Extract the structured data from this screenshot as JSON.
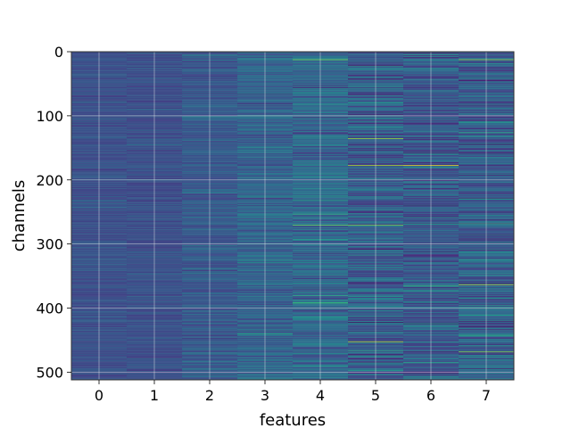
{
  "chart_data": {
    "type": "heatmap",
    "title": "",
    "xlabel": "features",
    "ylabel": "channels",
    "x_ticks": [
      "0",
      "1",
      "2",
      "3",
      "4",
      "5",
      "6",
      "7"
    ],
    "y_ticks": [
      "0",
      "100",
      "200",
      "300",
      "400",
      "500"
    ],
    "x_range": [
      -0.5,
      7.5
    ],
    "y_range": [
      512,
      0
    ],
    "rows": 512,
    "cols": 8,
    "colormap": "viridis",
    "grid": true,
    "value_range": [
      0,
      1
    ],
    "column_mean": [
      0.22,
      0.22,
      0.25,
      0.28,
      0.3,
      0.26,
      0.25,
      0.27
    ],
    "column_spread": [
      0.06,
      0.06,
      0.09,
      0.12,
      0.14,
      0.17,
      0.15,
      0.17
    ],
    "highlights": [
      {
        "col": 4,
        "row": 12,
        "value": 0.72
      },
      {
        "col": 7,
        "row": 12,
        "value": 0.75
      },
      {
        "col": 5,
        "row": 135,
        "value": 0.78
      },
      {
        "col": 5,
        "row": 177,
        "value": 0.8
      },
      {
        "col": 6,
        "row": 177,
        "value": 0.95
      },
      {
        "col": 4,
        "row": 270,
        "value": 0.7
      },
      {
        "col": 5,
        "row": 270,
        "value": 0.72
      },
      {
        "col": 7,
        "row": 363,
        "value": 0.78
      },
      {
        "col": 5,
        "row": 452,
        "value": 0.8
      },
      {
        "col": 7,
        "row": 468,
        "value": 0.74
      }
    ]
  }
}
